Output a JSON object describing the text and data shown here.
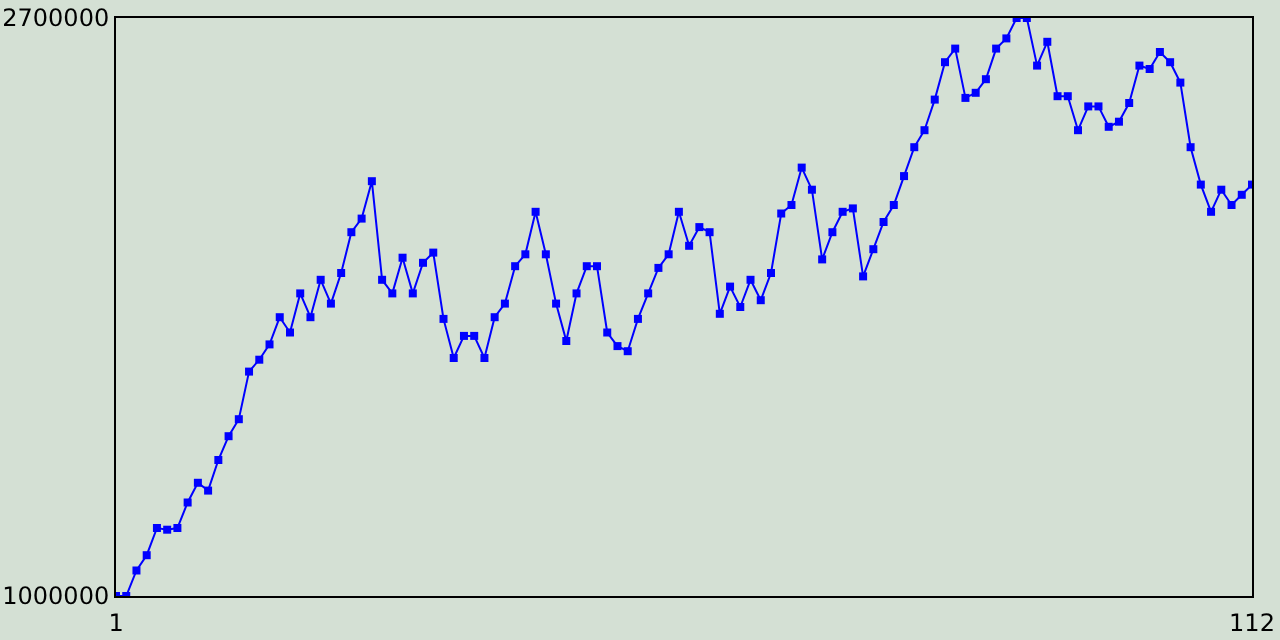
{
  "chart_data": {
    "type": "line",
    "x": [
      1,
      2,
      3,
      4,
      5,
      6,
      7,
      8,
      9,
      10,
      11,
      12,
      13,
      14,
      15,
      16,
      17,
      18,
      19,
      20,
      21,
      22,
      23,
      24,
      25,
      26,
      27,
      28,
      29,
      30,
      31,
      32,
      33,
      34,
      35,
      36,
      37,
      38,
      39,
      40,
      41,
      42,
      43,
      44,
      45,
      46,
      47,
      48,
      49,
      50,
      51,
      52,
      53,
      54,
      55,
      56,
      57,
      58,
      59,
      60,
      61,
      62,
      63,
      64,
      65,
      66,
      67,
      68,
      69,
      70,
      71,
      72,
      73,
      74,
      75,
      76,
      77,
      78,
      79,
      80,
      81,
      82,
      83,
      84,
      85,
      86,
      87,
      88,
      89,
      90,
      91,
      92,
      93,
      94,
      95,
      96,
      97,
      98,
      99,
      100,
      101,
      102,
      103,
      104,
      105,
      106,
      107,
      108,
      109,
      110,
      111,
      112
    ],
    "series": [
      {
        "color": "#0000ff",
        "values": [
          1000000,
          1000000,
          1075000,
          1120000,
          1200000,
          1195000,
          1200000,
          1275000,
          1333000,
          1310000,
          1400000,
          1470000,
          1520000,
          1660000,
          1695000,
          1740000,
          1820000,
          1775000,
          1890000,
          1820000,
          1930000,
          1860000,
          1950000,
          2070000,
          2110000,
          2220000,
          1930000,
          1890000,
          1995000,
          1890000,
          1980000,
          2010000,
          1815000,
          1700000,
          1765000,
          1765000,
          1700000,
          1820000,
          1860000,
          1970000,
          2005000,
          2130000,
          2005000,
          1860000,
          1750000,
          1890000,
          1970000,
          1970000,
          1775000,
          1735000,
          1720000,
          1815000,
          1890000,
          1965000,
          2005000,
          2130000,
          2030000,
          2085000,
          2070000,
          1830000,
          1910000,
          1850000,
          1930000,
          1870000,
          1950000,
          2125000,
          2150000,
          2260000,
          2195000,
          1990000,
          2070000,
          2130000,
          2140000,
          1940000,
          2020000,
          2100000,
          2150000,
          2235000,
          2320000,
          2370000,
          2460000,
          2570000,
          2610000,
          2465000,
          2480000,
          2520000,
          2610000,
          2640000,
          2700000,
          2700000,
          2560000,
          2630000,
          2470000,
          2470000,
          2370000,
          2440000,
          2440000,
          2380000,
          2395000,
          2450000,
          2560000,
          2550000,
          2600000,
          2570000,
          2510000,
          2320000,
          2210000,
          2130000,
          2195000,
          2150000,
          2180000,
          2210000
        ]
      }
    ],
    "xlim": [
      1,
      112
    ],
    "xticks": [
      1,
      112
    ],
    "ylim": [
      1000000,
      2700000
    ],
    "yticks": [
      1000000,
      2700000
    ],
    "marker": "square",
    "line_style": "solid"
  }
}
